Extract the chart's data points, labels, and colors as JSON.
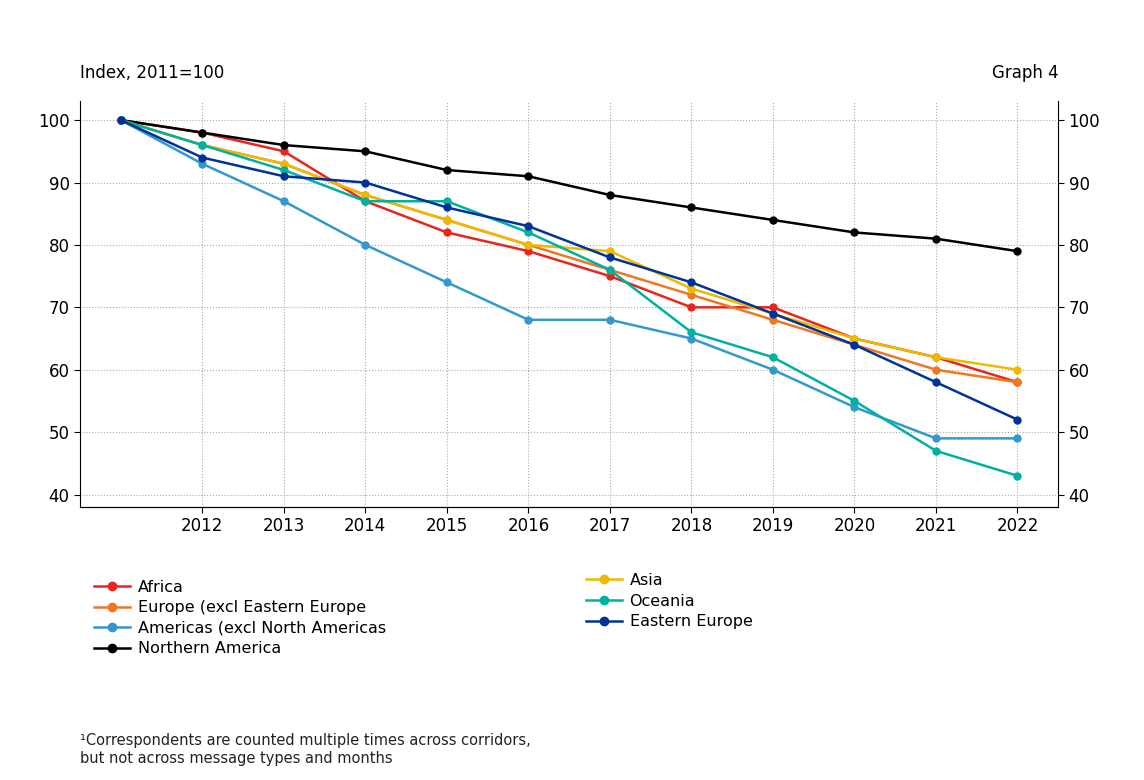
{
  "years": [
    2011,
    2012,
    2013,
    2014,
    2015,
    2016,
    2017,
    2018,
    2019,
    2020,
    2021,
    2022
  ],
  "series": {
    "Africa": {
      "values": [
        100,
        98,
        95,
        87,
        82,
        79,
        75,
        70,
        70,
        65,
        62,
        58
      ],
      "color": "#e8251e",
      "marker": "o"
    },
    "Europe (excl Eastern Europe": {
      "values": [
        100,
        96,
        93,
        88,
        84,
        80,
        76,
        72,
        68,
        64,
        60,
        58
      ],
      "color": "#f07722",
      "marker": "o"
    },
    "Americas (excl North Americas": {
      "values": [
        100,
        93,
        87,
        80,
        74,
        68,
        68,
        65,
        60,
        54,
        49,
        49
      ],
      "color": "#3399cc",
      "marker": "o"
    },
    "Northern America": {
      "values": [
        100,
        98,
        96,
        95,
        92,
        91,
        88,
        86,
        84,
        82,
        81,
        79
      ],
      "color": "#000000",
      "marker": "o"
    },
    "Asia": {
      "values": [
        100,
        96,
        93,
        88,
        84,
        80,
        79,
        73,
        69,
        65,
        62,
        60
      ],
      "color": "#f0b800",
      "marker": "o"
    },
    "Oceania": {
      "values": [
        100,
        96,
        92,
        87,
        87,
        82,
        76,
        66,
        62,
        55,
        47,
        43
      ],
      "color": "#00b0a0",
      "marker": "o"
    },
    "Eastern Europe": {
      "values": [
        100,
        94,
        91,
        90,
        86,
        83,
        78,
        74,
        69,
        64,
        58,
        52
      ],
      "color": "#003399",
      "marker": "o"
    }
  },
  "col1_items": [
    "Africa",
    "Europe (excl Eastern Europe",
    "Americas (excl North Americas",
    "Northern America"
  ],
  "col2_items": [
    "Asia",
    "Oceania",
    "Eastern Europe"
  ],
  "ylim": [
    38,
    103
  ],
  "yticks": [
    40,
    50,
    60,
    70,
    80,
    90,
    100
  ],
  "xlim": [
    2010.5,
    2022.5
  ],
  "xticks": [
    2012,
    2013,
    2014,
    2015,
    2016,
    2017,
    2018,
    2019,
    2020,
    2021,
    2022
  ],
  "ylabel_left": "Index, 2011=100",
  "graph_label": "Graph 4",
  "footnote": "¹Correspondents are counted multiple times across corridors,\nbut not across message types and months",
  "background_color": "#ffffff",
  "grid_color": "#aaaaaa"
}
